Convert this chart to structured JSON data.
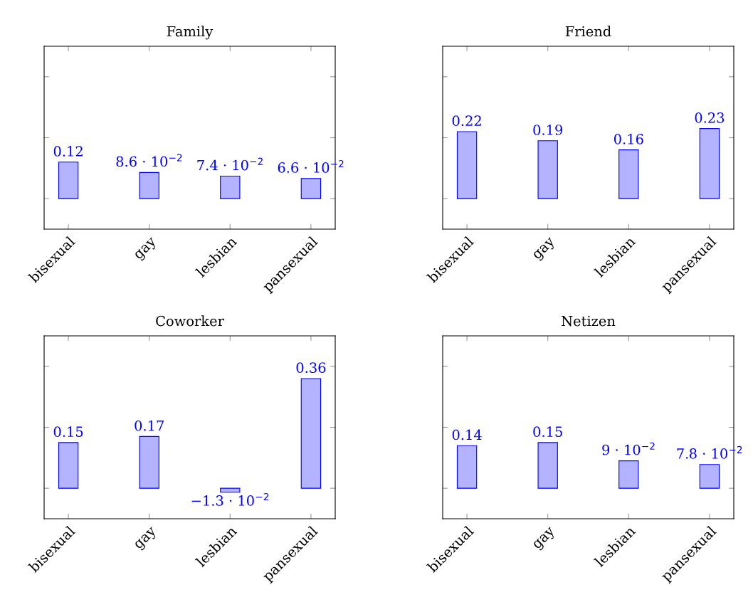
{
  "chart_data": [
    {
      "type": "bar",
      "title": "Family",
      "categories": [
        "bisexual",
        "gay",
        "lesbian",
        "pansexual"
      ],
      "values": [
        0.12,
        0.086,
        0.074,
        0.066
      ],
      "colors": [
        "#b3b3ff",
        "#b3b3ff",
        "#b3b3ff",
        "#b3b3ff"
      ],
      "value_labels": [
        "0.12",
        "8.6 · 10$^{−2}$",
        "7.4 · 10$^{−2}$",
        "6.6 · 10$^{−2}$"
      ],
      "ylim": [
        -0.1,
        0.5
      ],
      "yticks": [
        {
          "value": 0,
          "label": null
        },
        {
          "value": 0.2,
          "label": null
        },
        {
          "value": 0.4,
          "label": null
        }
      ],
      "tick_labels": "x"
    },
    {
      "type": "bar",
      "title": "Friend",
      "categories": [
        "bisexual",
        "gay",
        "lesbian",
        "pansexual"
      ],
      "values": [
        0.22,
        0.19,
        0.16,
        0.23
      ],
      "colors": [
        "#b3b3ff",
        "#b3b3ff",
        "#b3b3ff",
        "#b3b3ff"
      ],
      "value_labels": [
        "0.22",
        "0.19",
        "0.16",
        "0.23"
      ],
      "ylim": [
        -0.1,
        0.5
      ],
      "yticks": [
        {
          "value": 0,
          "label": null
        },
        {
          "value": 0.2,
          "label": null
        },
        {
          "value": 0.4,
          "label": null
        }
      ],
      "tick_labels": "x"
    },
    {
      "type": "bar",
      "title": "Coworker",
      "categories": [
        "bisexual",
        "gay",
        "lesbian",
        "pansexual"
      ],
      "values": [
        0.15,
        0.17,
        -0.013,
        0.36
      ],
      "colors": [
        "#b3b3ff",
        "#b3b3ff",
        "#b3b3ff",
        "#b3b3ff"
      ],
      "value_labels": [
        "0.15",
        "0.17",
        "−1.3 · 10$^{−2}$",
        "0.36"
      ],
      "ylim": [
        -0.1,
        0.5
      ],
      "yticks": [
        {
          "value": 0,
          "label": null
        },
        {
          "value": 0.2,
          "label": null
        },
        {
          "value": 0.4,
          "label": null
        }
      ],
      "tick_labels": "x"
    },
    {
      "type": "bar",
      "title": "Netizen",
      "categories": [
        "bisexual",
        "gay",
        "lesbian",
        "pansexual"
      ],
      "values": [
        0.14,
        0.15,
        0.09,
        0.078
      ],
      "colors": [
        "#b3b3ff",
        "#b3b3ff",
        "#b3b3ff",
        "#b3b3ff"
      ],
      "value_labels": [
        "0.14",
        "0.15",
        "9 · 10$^{−2}$",
        "7.8 · 10$^{−2}$"
      ],
      "ylim": [
        -0.1,
        0.5
      ],
      "yticks": [
        {
          "value": 0,
          "label": null
        },
        {
          "value": 0.2,
          "label": null
        },
        {
          "value": 0.4,
          "label": null
        }
      ],
      "tick_labels": "x"
    }
  ]
}
